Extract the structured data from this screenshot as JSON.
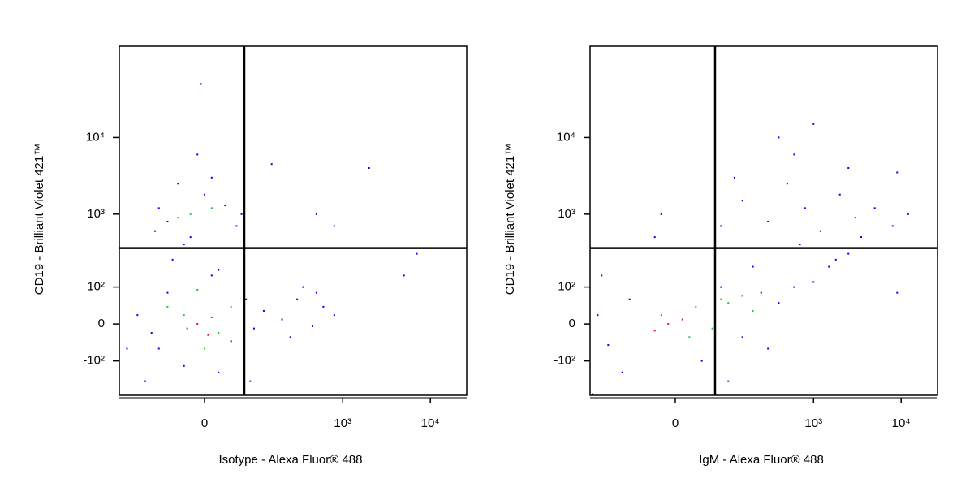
{
  "chart_data": [
    {
      "type": "scatter",
      "xscale": "biexponential",
      "yscale": "biexponential",
      "xlabel": "Isotype - Alexa Fluor® 488",
      "ylabel": "CD19 - Brilliant Violet 421™",
      "xlim": [
        -246,
        26000
      ],
      "ylim": [
        -311,
        155000
      ],
      "xticks": [
        0,
        {
          "value": 1000,
          "label": "10³"
        },
        {
          "value": 10000,
          "label": "10⁴"
        }
      ],
      "yticks": [
        {
          "value": -100,
          "label": "-10²"
        },
        0,
        {
          "value": 100,
          "label": "10²"
        },
        {
          "value": 1000,
          "label": "10³"
        },
        {
          "value": 10000,
          "label": "10⁴"
        }
      ],
      "gates": {
        "x": 66,
        "y": 358
      },
      "series": [
        {
          "color": "#0000ff",
          "x": [
            -150,
            -80,
            -60,
            -30,
            10,
            40,
            70,
            90,
            -100,
            20,
            120,
            200,
            300,
            450,
            600,
            800,
            350,
            250,
            500,
            5000,
            7000,
            -20,
            -60,
            0,
            30,
            -40,
            50,
            -80,
            10,
            -90,
            60,
            -30,
            -10,
            -5,
            150,
            2000,
            500,
            800,
            -200,
            -120,
            80,
            20,
            -50
          ],
          "y": [
            20,
            -60,
            80,
            -120,
            150,
            -40,
            60,
            -10,
            -20,
            -150,
            30,
            10,
            60,
            -5,
            40,
            20,
            100,
            -30,
            80,
            150,
            300,
            500,
            800,
            1800,
            1300,
            2500,
            700,
            1200,
            3000,
            600,
            1000,
            400,
            6000,
            50000,
            4500,
            4000,
            1000,
            700,
            -60,
            -200,
            -200,
            180,
            250
          ]
        },
        {
          "color": "#1ec832",
          "x": [
            -20,
            10,
            -40,
            -30,
            20,
            -60,
            40,
            0,
            -10
          ],
          "y": [
            1000,
            1200,
            900,
            20,
            -20,
            40,
            40,
            -60,
            90
          ]
        },
        {
          "color": "#e01010",
          "x": [
            -10,
            10,
            -25,
            5
          ],
          "y": [
            0,
            15,
            -10,
            -25
          ]
        }
      ]
    },
    {
      "type": "scatter",
      "xscale": "biexponential",
      "yscale": "biexponential",
      "xlabel": "IgM - Alexa Fluor® 488",
      "ylabel": "CD19 - Brilliant Violet 421™",
      "xlim": [
        -246,
        26000
      ],
      "ylim": [
        -311,
        155000
      ],
      "xticks": [
        0,
        {
          "value": 1000,
          "label": "10³"
        },
        {
          "value": 10000,
          "label": "10⁴"
        }
      ],
      "yticks": [
        {
          "value": -100,
          "label": "-10²"
        },
        0,
        {
          "value": 100,
          "label": "10²"
        },
        {
          "value": 1000,
          "label": "10³"
        },
        {
          "value": 10000,
          "label": "10⁴"
        }
      ],
      "gates": {
        "x": 66,
        "y": 358
      },
      "series": [
        {
          "color": "#0000ff",
          "x": [
            -150,
            -200,
            -100,
            -80,
            40,
            80,
            150,
            250,
            400,
            600,
            1000,
            1500,
            2500,
            3500,
            9000,
            300,
            200,
            100,
            -230,
            -180,
            80,
            150,
            300,
            500,
            800,
            1200,
            2000,
            3000,
            5000,
            8000,
            12000,
            9000,
            600,
            400,
            1000,
            -30,
            -20,
            120,
            2500,
            700,
            1800
          ],
          "y": [
            -50,
            20,
            -150,
            60,
            -100,
            100,
            -30,
            80,
            50,
            100,
            120,
            200,
            300,
            500,
            80,
            -60,
            200,
            -200,
            -300,
            150,
            700,
            1500,
            800,
            2500,
            1200,
            600,
            1800,
            900,
            1200,
            700,
            1000,
            3500,
            6000,
            10000,
            15000,
            500,
            1000,
            3000,
            4000,
            400,
            250
          ]
        },
        {
          "color": "#1ec832",
          "x": [
            -20,
            30,
            80,
            150,
            200,
            60,
            20,
            100
          ],
          "y": [
            20,
            40,
            60,
            70,
            30,
            -10,
            -30,
            50
          ]
        },
        {
          "color": "#e01010",
          "x": [
            -10,
            10,
            -30
          ],
          "y": [
            0,
            10,
            -15
          ]
        }
      ]
    }
  ]
}
